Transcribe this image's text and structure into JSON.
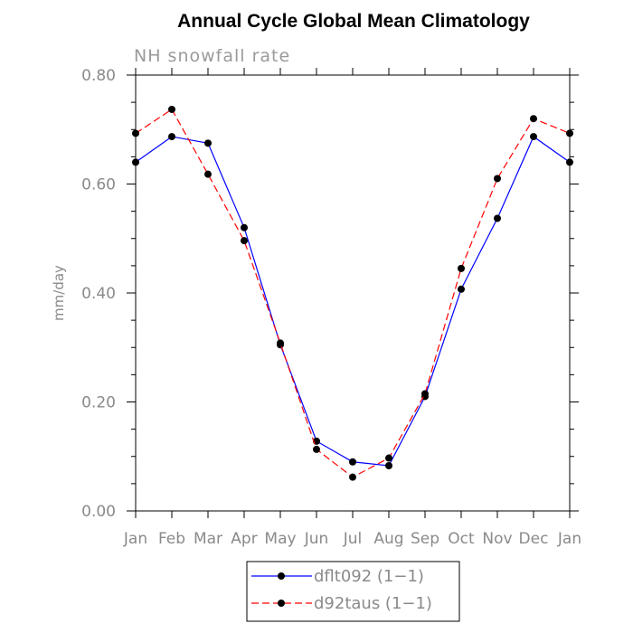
{
  "chart_data": {
    "type": "line",
    "title": "Annual Cycle Global Mean Climatology",
    "subtitle": "NH snowfall rate",
    "ylabel": "mm/day",
    "xlabel": "",
    "categories": [
      "Jan",
      "Feb",
      "Mar",
      "Apr",
      "May",
      "Jun",
      "Jul",
      "Aug",
      "Sep",
      "Oct",
      "Nov",
      "Dec",
      "Jan"
    ],
    "ylim": [
      0,
      0.8
    ],
    "yticks": [
      0,
      0.2,
      0.4,
      0.6,
      0.8
    ],
    "ytick_labels": [
      "0.00",
      "0.20",
      "0.40",
      "0.60",
      "0.80"
    ],
    "grid": false,
    "legend_position": "bottom-center",
    "series": [
      {
        "name": "dflt092 (1−1)",
        "color": "#0000ff",
        "style": "solid",
        "values": [
          0.64,
          0.687,
          0.675,
          0.52,
          0.305,
          0.128,
          0.09,
          0.083,
          0.21,
          0.407,
          0.537,
          0.687,
          0.64
        ]
      },
      {
        "name": "d92taus (1−1)",
        "color": "#ff0000",
        "style": "dashed",
        "values": [
          0.693,
          0.737,
          0.618,
          0.496,
          0.308,
          0.113,
          0.062,
          0.097,
          0.215,
          0.445,
          0.61,
          0.72,
          0.693
        ]
      }
    ]
  }
}
